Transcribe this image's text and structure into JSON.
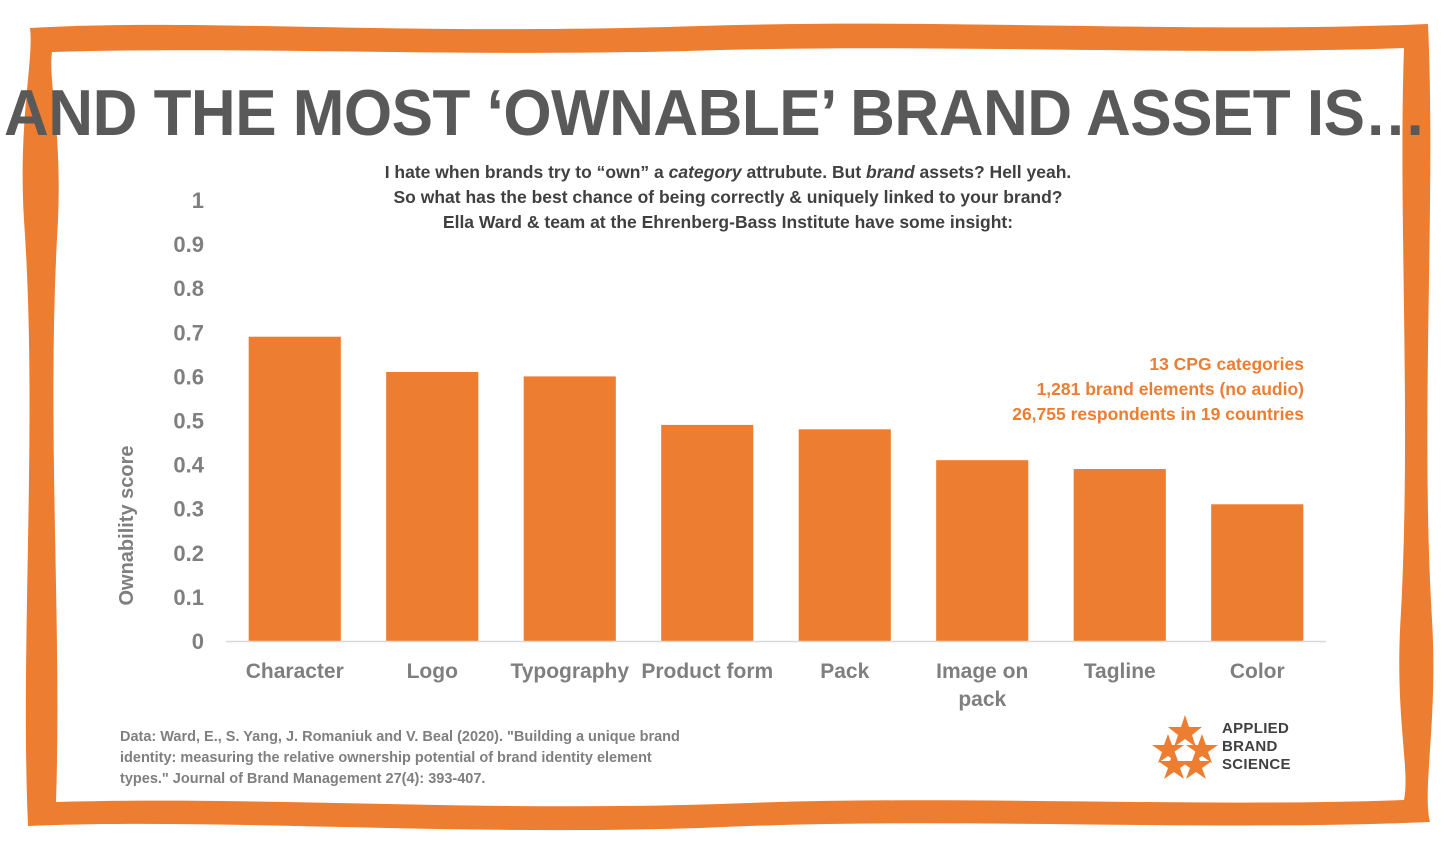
{
  "title": "AND THE MOST ‘OWNABLE’ BRAND ASSET IS…",
  "subtitle": {
    "line1_a": "I hate when brands try to “own” a ",
    "line1_b": "category",
    "line1_c": " attrubute. But ",
    "line1_d": "brand",
    "line1_e": " assets? Hell yeah.",
    "line2": "So what has the best chance of being correctly & uniquely linked to your brand?",
    "line3": "Ella Ward & team at the Ehrenberg-Bass Institute have some insight:"
  },
  "notes": [
    "13 CPG categories",
    "1,281 brand elements (no audio)",
    "26,755 respondents in 19 countries"
  ],
  "citation": "Data: Ward, E., S. Yang, J. Romaniuk and V. Beal (2020). \"Building a unique brand identity: measuring the relative ownership potential of brand identity element types.\" Journal of Brand Management 27(4): 393-407.",
  "logo": {
    "line1": "APPLIED",
    "line2": "BRAND",
    "line3": "SCIENCE",
    "icon": "stars-icon"
  },
  "colors": {
    "accent": "#ed7d31",
    "title": "#595959",
    "axis_text": "#7f7f7f"
  },
  "chart_data": {
    "type": "bar",
    "categories": [
      [
        "Character"
      ],
      [
        "Logo"
      ],
      [
        "Typography"
      ],
      [
        "Product form"
      ],
      [
        "Pack"
      ],
      [
        "Image on",
        "pack"
      ],
      [
        "Tagline"
      ],
      [
        "Color"
      ]
    ],
    "values": [
      0.69,
      0.61,
      0.6,
      0.49,
      0.48,
      0.41,
      0.39,
      0.31
    ],
    "ylabel": "Ownability score",
    "xlabel": "",
    "ylim": [
      0,
      1
    ],
    "yticks": [
      "0",
      "0.1",
      "0.2",
      "0.3",
      "0.4",
      "0.5",
      "0.6",
      "0.7",
      "0.8",
      "0.9",
      "1"
    ],
    "grid": false,
    "bar_color": "#ed7d31"
  }
}
